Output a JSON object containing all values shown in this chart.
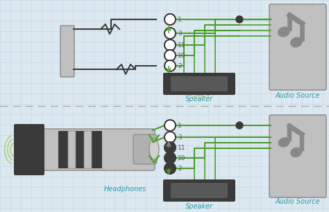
{
  "bg_color": "#dce8f0",
  "grid_color": "#c5d9e8",
  "divider_color": "#aaaaaa",
  "green_wire": "#4a9e2a",
  "green_wire_light": "#a8cc70",
  "dark_gray": "#3a3a3a",
  "med_gray": "#888888",
  "light_gray": "#c0c0c0",
  "label_color": "#3399aa",
  "number_color": "#555555",
  "pin_labels": [
    "1",
    "3",
    "11",
    "10",
    "2"
  ]
}
